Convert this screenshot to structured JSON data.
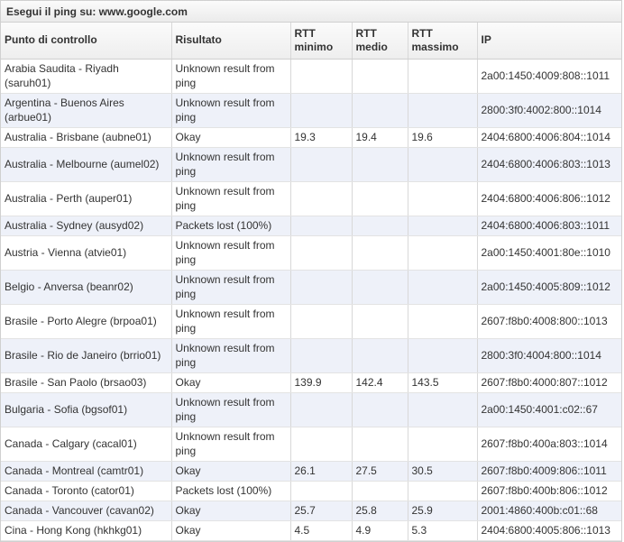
{
  "caption": "Esegui il ping su: www.google.com",
  "columns": [
    "Punto di controllo",
    "Risultato",
    "RTT minimo",
    "RTT medio",
    "RTT massimo",
    "IP"
  ],
  "rows": [
    {
      "location": "Arabia Saudita - Riyadh (saruh01)",
      "result": "Unknown result from ping",
      "min": "",
      "avg": "",
      "max": "",
      "ip": "2a00:1450:4009:808::1011"
    },
    {
      "location": "Argentina - Buenos Aires (arbue01)",
      "result": "Unknown result from ping",
      "min": "",
      "avg": "",
      "max": "",
      "ip": "2800:3f0:4002:800::1014"
    },
    {
      "location": "Australia - Brisbane (aubne01)",
      "result": "Okay",
      "min": "19.3",
      "avg": "19.4",
      "max": "19.6",
      "ip": "2404:6800:4006:804::1014"
    },
    {
      "location": "Australia - Melbourne (aumel02)",
      "result": "Unknown result from ping",
      "min": "",
      "avg": "",
      "max": "",
      "ip": "2404:6800:4006:803::1013"
    },
    {
      "location": "Australia - Perth (auper01)",
      "result": "Unknown result from ping",
      "min": "",
      "avg": "",
      "max": "",
      "ip": "2404:6800:4006:806::1012"
    },
    {
      "location": "Australia - Sydney (ausyd02)",
      "result": "Packets lost (100%)",
      "min": "",
      "avg": "",
      "max": "",
      "ip": "2404:6800:4006:803::1011"
    },
    {
      "location": "Austria - Vienna (atvie01)",
      "result": "Unknown result from ping",
      "min": "",
      "avg": "",
      "max": "",
      "ip": "2a00:1450:4001:80e::1010"
    },
    {
      "location": "Belgio - Anversa (beanr02)",
      "result": "Unknown result from ping",
      "min": "",
      "avg": "",
      "max": "",
      "ip": "2a00:1450:4005:809::1012"
    },
    {
      "location": "Brasile - Porto Alegre (brpoa01)",
      "result": "Unknown result from ping",
      "min": "",
      "avg": "",
      "max": "",
      "ip": "2607:f8b0:4008:800::1013"
    },
    {
      "location": "Brasile - Rio de Janeiro (brrio01)",
      "result": "Unknown result from ping",
      "min": "",
      "avg": "",
      "max": "",
      "ip": "2800:3f0:4004:800::1014"
    },
    {
      "location": "Brasile - San Paolo (brsao03)",
      "result": "Okay",
      "min": "139.9",
      "avg": "142.4",
      "max": "143.5",
      "ip": "2607:f8b0:4000:807::1012"
    },
    {
      "location": "Bulgaria - Sofia (bgsof01)",
      "result": "Unknown result from ping",
      "min": "",
      "avg": "",
      "max": "",
      "ip": "2a00:1450:4001:c02::67"
    },
    {
      "location": "Canada - Calgary (cacal01)",
      "result": "Unknown result from ping",
      "min": "",
      "avg": "",
      "max": "",
      "ip": "2607:f8b0:400a:803::1014"
    },
    {
      "location": "Canada - Montreal (camtr01)",
      "result": "Okay",
      "min": "26.1",
      "avg": "27.5",
      "max": "30.5",
      "ip": "2607:f8b0:4009:806::1011"
    },
    {
      "location": "Canada - Toronto (cator01)",
      "result": "Packets lost (100%)",
      "min": "",
      "avg": "",
      "max": "",
      "ip": "2607:f8b0:400b:806::1012"
    },
    {
      "location": "Canada - Vancouver (cavan02)",
      "result": "Okay",
      "min": "25.7",
      "avg": "25.8",
      "max": "25.9",
      "ip": "2001:4860:400b:c01::68"
    },
    {
      "location": "Cina - Hong Kong (hkhkg01)",
      "result": "Okay",
      "min": "4.5",
      "avg": "4.9",
      "max": "5.3",
      "ip": "2404:6800:4005:806::1013"
    }
  ]
}
